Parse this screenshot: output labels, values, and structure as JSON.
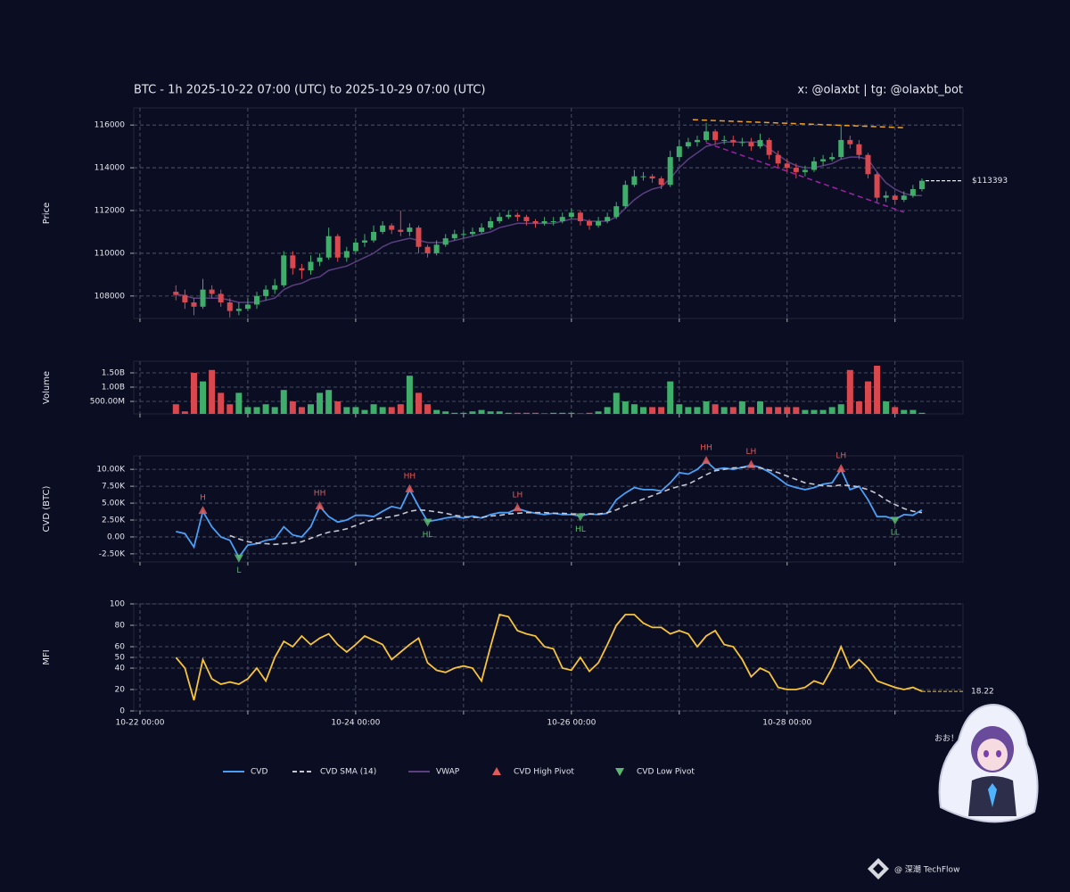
{
  "chart_data": {
    "type": "candlestick",
    "title": "BTC - 1h 2025-10-22 07:00 (UTC) to 2025-10-29 07:00 (UTC)",
    "credit": "x: @olaxbt | tg: @olaxbt_bot",
    "xlim": [
      "10-21 22:37",
      "10-29 15:08"
    ],
    "xticks": [
      "10-22 00:00",
      "10-24 00:00",
      "10-26 00:00",
      "10-28 00:00"
    ],
    "minor_xticks": [
      "10-23 00:00",
      "10-25 00:00",
      "10-27 00:00",
      "10-29 00:00"
    ],
    "x": [
      "10-22 08:00",
      "10-22 10:00",
      "10-22 12:00",
      "10-22 14:00",
      "10-22 16:00",
      "10-22 18:00",
      "10-22 20:00",
      "10-22 22:00",
      "10-23 00:00",
      "10-23 02:00",
      "10-23 04:00",
      "10-23 06:00",
      "10-23 08:00",
      "10-23 10:00",
      "10-23 12:00",
      "10-23 14:00",
      "10-23 16:00",
      "10-23 18:00",
      "10-23 20:00",
      "10-23 22:00",
      "10-24 00:00",
      "10-24 02:00",
      "10-24 04:00",
      "10-24 06:00",
      "10-24 08:00",
      "10-24 10:00",
      "10-24 12:00",
      "10-24 14:00",
      "10-24 16:00",
      "10-24 18:00",
      "10-24 20:00",
      "10-24 22:00",
      "10-25 00:00",
      "10-25 02:00",
      "10-25 04:00",
      "10-25 06:00",
      "10-25 08:00",
      "10-25 10:00",
      "10-25 12:00",
      "10-25 14:00",
      "10-25 16:00",
      "10-25 18:00",
      "10-25 20:00",
      "10-25 22:00",
      "10-26 00:00",
      "10-26 02:00",
      "10-26 04:00",
      "10-26 06:00",
      "10-26 08:00",
      "10-26 10:00",
      "10-26 12:00",
      "10-26 14:00",
      "10-26 16:00",
      "10-26 18:00",
      "10-26 20:00",
      "10-26 22:00",
      "10-27 00:00",
      "10-27 02:00",
      "10-27 04:00",
      "10-27 06:00",
      "10-27 08:00",
      "10-27 10:00",
      "10-27 12:00",
      "10-27 14:00",
      "10-27 16:00",
      "10-27 18:00",
      "10-27 20:00",
      "10-27 22:00",
      "10-28 00:00",
      "10-28 02:00",
      "10-28 04:00",
      "10-28 06:00",
      "10-28 08:00",
      "10-28 10:00",
      "10-28 12:00",
      "10-28 14:00",
      "10-28 16:00",
      "10-28 18:00",
      "10-28 20:00",
      "10-28 22:00",
      "10-29 00:00",
      "10-29 02:00",
      "10-29 04:00",
      "10-29 06:00"
    ],
    "grid": true,
    "price": {
      "ylabel": "Price",
      "ylim": [
        106950,
        116800
      ],
      "yticks": [
        108000,
        110000,
        112000,
        114000,
        116000
      ],
      "up_color": "#3fae6a",
      "down_color": "#d9484f",
      "open": [
        108200,
        108050,
        107700,
        107500,
        108300,
        108100,
        107700,
        107300,
        107400,
        107600,
        108000,
        108300,
        108500,
        109900,
        109300,
        109200,
        109600,
        109800,
        110800,
        109800,
        110100,
        110500,
        110600,
        111000,
        111300,
        111100,
        111000,
        111200,
        110300,
        110000,
        110400,
        110700,
        110900,
        110900,
        111000,
        111200,
        111500,
        111700,
        111800,
        111700,
        111500,
        111400,
        111500,
        111500,
        111700,
        111900,
        111500,
        111300,
        111500,
        111700,
        112200,
        113200,
        113600,
        113600,
        113500,
        113200,
        114500,
        115000,
        115200,
        115300,
        115700,
        115300,
        115300,
        115200,
        115200,
        115000,
        115300,
        114600,
        114200,
        114000,
        113800,
        113900,
        114300,
        114400,
        114500,
        115300,
        115100,
        114600,
        113700,
        112600,
        112700,
        112500,
        112700,
        113000
      ],
      "high": [
        108500,
        108300,
        107900,
        108800,
        108500,
        108300,
        107900,
        107700,
        107900,
        108200,
        108500,
        108800,
        110100,
        110100,
        109500,
        109900,
        110000,
        111200,
        110900,
        110300,
        110700,
        110900,
        111300,
        111500,
        111400,
        112000,
        111400,
        111300,
        110400,
        110600,
        110900,
        111100,
        111100,
        111200,
        111400,
        111700,
        111900,
        112000,
        111900,
        111800,
        111600,
        111700,
        111700,
        111900,
        112100,
        112000,
        111600,
        111700,
        111900,
        112400,
        113400,
        113900,
        113800,
        113700,
        113600,
        114800,
        115300,
        115400,
        115500,
        116100,
        115800,
        115500,
        115500,
        115400,
        115400,
        115600,
        115400,
        114800,
        114400,
        114200,
        114100,
        114500,
        114600,
        114700,
        116000,
        115500,
        115300,
        114700,
        113800,
        112900,
        112800,
        112900,
        113200,
        113500
      ],
      "low": [
        107800,
        107400,
        107100,
        107400,
        107900,
        107500,
        107000,
        107100,
        107300,
        107400,
        107800,
        108100,
        108400,
        109000,
        108800,
        109000,
        109400,
        109700,
        109600,
        109600,
        110000,
        110300,
        110500,
        110900,
        110900,
        110800,
        110800,
        110000,
        109800,
        109900,
        110300,
        110600,
        110700,
        110800,
        110900,
        111100,
        111400,
        111600,
        111500,
        111300,
        111200,
        111300,
        111300,
        111400,
        111600,
        111300,
        111100,
        111200,
        111400,
        111600,
        112100,
        113100,
        113400,
        113300,
        113000,
        113100,
        114300,
        114900,
        115000,
        115200,
        115100,
        115100,
        115000,
        115000,
        114800,
        114900,
        114400,
        114000,
        113800,
        113500,
        113600,
        113800,
        114100,
        114300,
        114400,
        114900,
        114400,
        113500,
        112400,
        112400,
        112300,
        112400,
        112600,
        112900
      ],
      "close": [
        108050,
        107700,
        107500,
        108300,
        108100,
        107700,
        107300,
        107400,
        107600,
        108000,
        108300,
        108500,
        109900,
        109300,
        109200,
        109600,
        109800,
        110800,
        109800,
        110100,
        110500,
        110600,
        111000,
        111300,
        111100,
        111000,
        111200,
        110300,
        110000,
        110400,
        110700,
        110900,
        110900,
        111000,
        111200,
        111500,
        111700,
        111800,
        111700,
        111500,
        111400,
        111500,
        111500,
        111700,
        111900,
        111500,
        111300,
        111500,
        111700,
        112200,
        113200,
        113600,
        113600,
        113500,
        113200,
        114500,
        115000,
        115200,
        115300,
        115700,
        115300,
        115300,
        115200,
        115200,
        115000,
        115300,
        114600,
        114200,
        114000,
        113800,
        113900,
        114300,
        114400,
        114500,
        115300,
        115100,
        114600,
        113700,
        112600,
        112700,
        112500,
        112700,
        113000,
        113393
      ],
      "last_close_label": "$113393",
      "last_color": "#e8e8f0",
      "vwap": {
        "name": "VWAP",
        "color": "#5b3f80",
        "values": [
          108100,
          108000,
          107900,
          107900,
          107900,
          107900,
          107800,
          107700,
          107700,
          107700,
          107800,
          107900,
          108300,
          108500,
          108600,
          108800,
          108900,
          109200,
          109300,
          109400,
          109600,
          109800,
          110000,
          110300,
          110500,
          110600,
          110700,
          110600,
          110500,
          110500,
          110500,
          110600,
          110700,
          110800,
          110900,
          111000,
          111200,
          111300,
          111400,
          111400,
          111400,
          111400,
          111400,
          111500,
          111600,
          111600,
          111500,
          111500,
          111500,
          111700,
          112100,
          112500,
          112800,
          113000,
          113100,
          113500,
          114000,
          114400,
          114700,
          115000,
          115100,
          115200,
          115200,
          115200,
          115200,
          115200,
          114900,
          114600,
          114300,
          114100,
          114000,
          114000,
          114100,
          114200,
          114400,
          114500,
          114500,
          114400,
          113800,
          113300,
          113000,
          112800,
          112700,
          112700
        ]
      },
      "trendlines": [
        {
          "color": "#f0a020",
          "x": [
            "10-27 03:00",
            "10-29 02:00"
          ],
          "values": [
            116250,
            115875
          ]
        },
        {
          "color": "#a020a8",
          "x": [
            "10-27 06:00",
            "10-29 02:00"
          ],
          "values": [
            115170,
            111920
          ]
        }
      ]
    },
    "volume": {
      "ylabel": "Volume",
      "ylim": [
        62500000,
        1906000000
      ],
      "yticks": [
        {
          "value": 500000000,
          "label": "500.00M"
        },
        {
          "value": 1000000000,
          "label": "1.00B"
        },
        {
          "value": 1500000000,
          "label": "1.50B"
        }
      ],
      "values": [
        400000000,
        150000000,
        1500000000,
        1200000000,
        1600000000,
        800000000,
        400000000,
        800000000,
        300000000,
        300000000,
        400000000,
        300000000,
        900000000,
        500000000,
        300000000,
        400000000,
        800000000,
        900000000,
        500000000,
        300000000,
        300000000,
        200000000,
        400000000,
        300000000,
        300000000,
        400000000,
        1400000000,
        800000000,
        400000000,
        200000000,
        150000000,
        100000000,
        100000000,
        150000000,
        200000000,
        150000000,
        150000000,
        100000000,
        100000000,
        100000000,
        100000000,
        80000000,
        100000000,
        100000000,
        100000000,
        80000000,
        100000000,
        150000000,
        300000000,
        800000000,
        500000000,
        400000000,
        300000000,
        300000000,
        300000000,
        1200000000,
        400000000,
        300000000,
        300000000,
        500000000,
        400000000,
        300000000,
        300000000,
        500000000,
        300000000,
        500000000,
        300000000,
        300000000,
        300000000,
        300000000,
        200000000,
        200000000,
        200000000,
        300000000,
        400000000,
        1600000000,
        500000000,
        1200000000,
        1750000000,
        500000000,
        300000000,
        200000000,
        200000000,
        100000000
      ]
    },
    "cvd": {
      "ylabel": "CVD (BTC)",
      "ylim": [
        -3700,
        12000
      ],
      "yticks": [
        {
          "value": -2500,
          "label": "-2.50K"
        },
        {
          "value": 0,
          "label": "0.00"
        },
        {
          "value": 2500,
          "label": "2.50K"
        },
        {
          "value": 5000,
          "label": "5.00K"
        },
        {
          "value": 7500,
          "label": "7.50K"
        },
        {
          "value": 10000,
          "label": "10.00K"
        }
      ],
      "series": [
        {
          "name": "CVD",
          "color": "#4a9ff5",
          "values": [
            800,
            500,
            -1500,
            3800,
            1500,
            0,
            -500,
            -3000,
            -1200,
            -1000,
            -500,
            -300,
            1500,
            300,
            0,
            1500,
            4500,
            3000,
            2200,
            2500,
            3200,
            3200,
            3000,
            3800,
            4500,
            4200,
            7000,
            4500,
            2300,
            2500,
            2800,
            3000,
            2800,
            3100,
            2800,
            3300,
            3600,
            3600,
            4200,
            3800,
            3500,
            3300,
            3500,
            3300,
            3300,
            3100,
            3400,
            3300,
            3500,
            5500,
            6500,
            7300,
            7000,
            7000,
            6800,
            8000,
            9500,
            9300,
            10000,
            11200,
            10000,
            10200,
            10000,
            10300,
            10600,
            10300,
            9600,
            8700,
            7700,
            7300,
            7000,
            7300,
            7800,
            8000,
            10000,
            7000,
            7500,
            5500,
            3000,
            3000,
            2600,
            3300,
            3200,
            4000
          ]
        },
        {
          "name": "CVD SMA (14)",
          "color": "#c8c8d2",
          "dashed": true,
          "values": [
            null,
            null,
            null,
            null,
            null,
            null,
            200,
            -300,
            -700,
            -900,
            -1000,
            -1100,
            -1000,
            -900,
            -700,
            -200,
            300,
            700,
            900,
            1200,
            1700,
            2200,
            2600,
            2800,
            3000,
            3300,
            3800,
            4000,
            3900,
            3700,
            3500,
            3200,
            3000,
            2900,
            2900,
            3100,
            3200,
            3400,
            3500,
            3600,
            3600,
            3600,
            3500,
            3500,
            3400,
            3400,
            3400,
            3400,
            3600,
            4000,
            4600,
            5100,
            5600,
            6100,
            6600,
            7100,
            7500,
            7800,
            8500,
            9200,
            9800,
            10000,
            10200,
            10300,
            10400,
            10200,
            9900,
            9500,
            9000,
            8500,
            8000,
            7800,
            7600,
            7500,
            7700,
            7600,
            7400,
            7000,
            6400,
            5500,
            4800,
            4200,
            3800,
            3600
          ]
        }
      ],
      "pivots": {
        "high": {
          "name": "CVD High Pivot",
          "color": "#e05a5a",
          "x": [
            "10-22 14:00",
            "10-23 16:00",
            "10-24 12:00",
            "10-25 12:00",
            "10-27 06:00",
            "10-27 16:00",
            "10-28 12:00"
          ],
          "values": [
            3800,
            4500,
            7000,
            4200,
            11200,
            10600,
            10000
          ],
          "labels": [
            "H",
            "HH",
            "HH",
            "LH",
            "HH",
            "LH",
            "LH"
          ]
        },
        "low": {
          "name": "CVD Low Pivot",
          "color": "#5cb870",
          "x": [
            "10-22 22:00",
            "10-24 16:00",
            "10-26 02:00",
            "10-29 00:00"
          ],
          "values": [
            -3000,
            2300,
            3100,
            2600
          ],
          "labels": [
            "L",
            "HL",
            "HL",
            "LL"
          ]
        }
      }
    },
    "mfi": {
      "ylabel": "MFI",
      "ylim": [
        0,
        100
      ],
      "yticks": [
        0,
        20,
        40,
        50,
        60,
        80,
        100
      ],
      "color": "#f6c33a",
      "values": [
        50,
        40,
        10,
        48,
        30,
        25,
        27,
        25,
        30,
        40,
        28,
        50,
        65,
        60,
        70,
        62,
        68,
        72,
        62,
        55,
        62,
        70,
        66,
        62,
        48,
        55,
        62,
        68,
        45,
        38,
        36,
        40,
        42,
        40,
        28,
        60,
        90,
        88,
        75,
        72,
        70,
        60,
        58,
        40,
        38,
        50,
        37,
        45,
        62,
        80,
        90,
        90,
        82,
        78,
        78,
        72,
        75,
        72,
        60,
        70,
        75,
        62,
        60,
        48,
        32,
        40,
        36,
        22,
        20,
        20,
        22,
        28,
        25,
        40,
        60,
        40,
        48,
        40,
        28,
        25,
        22,
        20,
        22,
        18.22
      ]
    },
    "sticker_text": "おお！",
    "watermark": "@ 深潮 TechFlow"
  }
}
